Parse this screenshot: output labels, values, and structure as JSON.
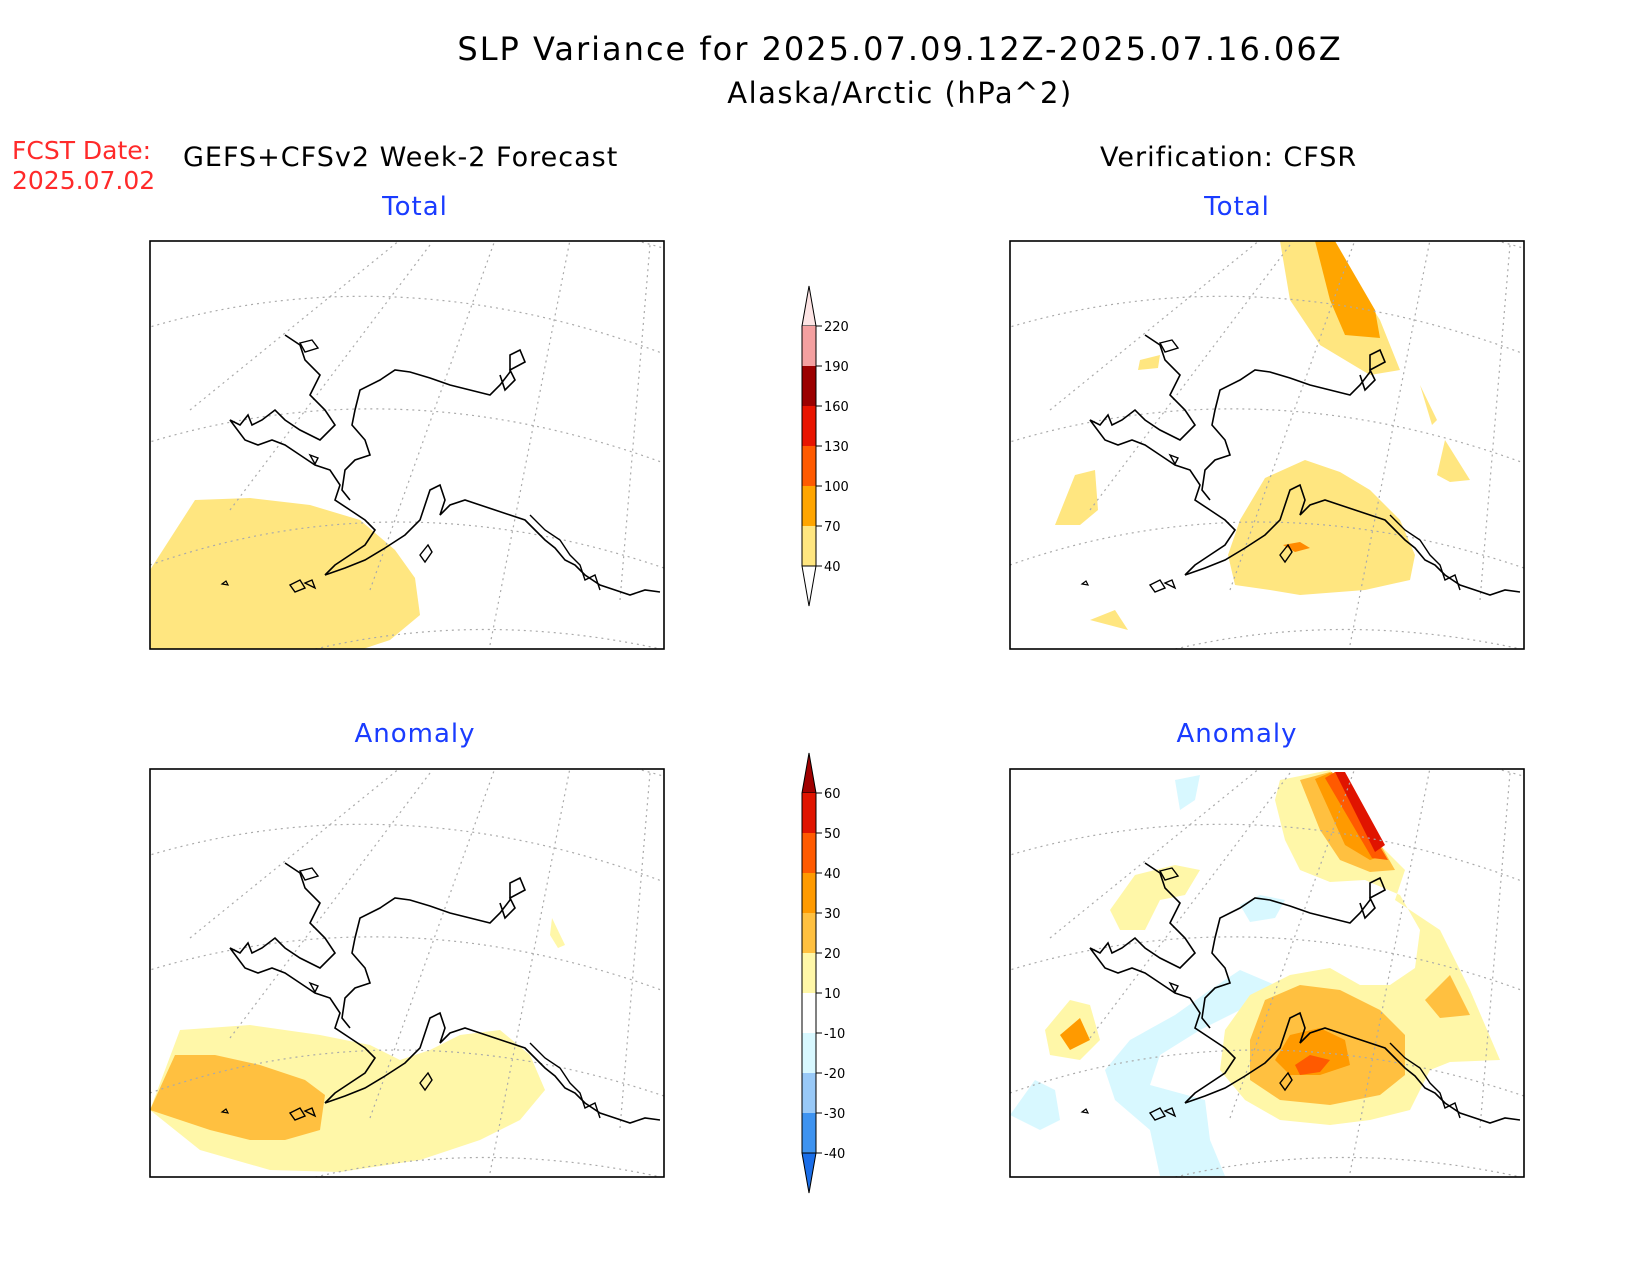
{
  "title": {
    "line1": "SLP Variance for 2025.07.09.12Z-2025.07.16.06Z",
    "line2": "Alaska/Arctic (hPa^2)"
  },
  "forecast": {
    "label": "FCST Date:",
    "date": "2025.07.02"
  },
  "left_header": "GEFS+CFSv2 Week-2 Forecast",
  "right_header": "Verification: CFSR",
  "panels": {
    "forecast_total": "Total",
    "verification_total": "Total",
    "forecast_anomaly": "Anomaly",
    "verification_anomaly": "Anomaly"
  },
  "colorbars": {
    "total": {
      "labels": [
        "40",
        "70",
        "100",
        "130",
        "160",
        "190",
        "220"
      ],
      "colors": [
        "#ffe680",
        "#ffa500",
        "#ff5a00",
        "#e81400",
        "#9b0000",
        "#f4a0a0",
        "#fde4e4"
      ]
    },
    "anomaly": {
      "labels": [
        "-40",
        "-30",
        "-20",
        "-10",
        "10",
        "20",
        "30",
        "40",
        "50",
        "60"
      ],
      "colors": [
        "#1a6ee8",
        "#3e93f0",
        "#99c9f7",
        "#d8f8ff",
        "#ffffff",
        "#fff7a8",
        "#ffc040",
        "#ff9a00",
        "#ff5a00",
        "#e01400",
        "#a00000"
      ]
    }
  }
}
